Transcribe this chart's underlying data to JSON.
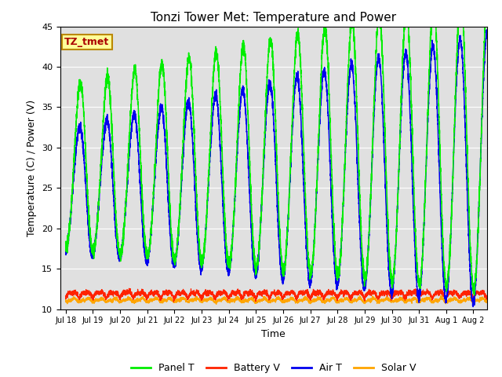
{
  "title": "Tonzi Tower Met: Temperature and Power",
  "xlabel": "Time",
  "ylabel": "Temperature (C) / Power (V)",
  "ylim": [
    10,
    45
  ],
  "yticks": [
    10,
    15,
    20,
    25,
    30,
    35,
    40,
    45
  ],
  "xtick_labels": [
    "Jul 18",
    "Jul 19",
    "Jul 20",
    "Jul 21",
    "Jul 22",
    "Jul 23",
    "Jul 24",
    "Jul 25",
    "Jul 26",
    "Jul 27",
    "Jul 28",
    "Jul 29",
    "Jul 30",
    "Jul 31",
    "Aug 1",
    "Aug 2"
  ],
  "colors": {
    "panel_t": "#00EE00",
    "battery_v": "#FF2200",
    "air_t": "#0000EE",
    "solar_v": "#FFA500"
  },
  "legend_labels": [
    "Panel T",
    "Battery V",
    "Air T",
    "Solar V"
  ],
  "annotation_text": "TZ_tmet",
  "annotation_color": "#AA0000",
  "annotation_bg": "#FFFF99",
  "annotation_border": "#BB8800",
  "background_color": "#E0E0E0",
  "grid_color": "white",
  "title_fontsize": 11,
  "axis_fontsize": 9,
  "tick_fontsize": 8
}
